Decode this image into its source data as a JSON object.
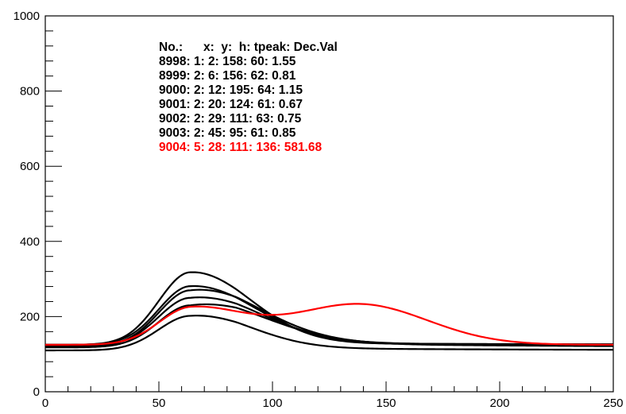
{
  "chart_data": {
    "type": "line",
    "title": "",
    "xlabel": "",
    "ylabel": "",
    "xlim": [
      0,
      250
    ],
    "ylim": [
      0,
      1000
    ],
    "x_ticks": [
      "0",
      "50",
      "100",
      "150",
      "200",
      "250"
    ],
    "y_ticks": [
      "0",
      "200",
      "400",
      "600",
      "800",
      "1000"
    ],
    "grid": false,
    "legend_placement": "top-left",
    "legend": {
      "header": "No.:      x:  y:  h: tpeak: Dec.Val",
      "rows": [
        {
          "text": "8998: 1: 2: 158: 60: 1.55",
          "color": "#000000"
        },
        {
          "text": "8999: 2: 6: 156: 62: 0.81",
          "color": "#000000"
        },
        {
          "text": "9000: 2: 12: 195: 64: 1.15",
          "color": "#000000"
        },
        {
          "text": "9001: 2: 20: 124: 61: 0.67",
          "color": "#000000"
        },
        {
          "text": "9002: 2: 29: 111: 63: 0.75",
          "color": "#000000"
        },
        {
          "text": "9003: 2: 45: 95: 61: 0.85",
          "color": "#000000"
        },
        {
          "text": "9004: 5: 28: 111: 136: 581.68",
          "color": "#ff0000"
        }
      ]
    },
    "series": [
      {
        "color": "#000000",
        "baseline": 125,
        "peak_x": 64,
        "amplitude": 193,
        "rise_width": 14,
        "fall_width": 26,
        "tail": 5
      },
      {
        "color": "#000000",
        "baseline": 125,
        "peak_x": 64,
        "amplitude": 156,
        "rise_width": 14,
        "fall_width": 28,
        "tail": 6
      },
      {
        "color": "#000000",
        "baseline": 120,
        "peak_x": 64,
        "amplitude": 150,
        "rise_width": 14,
        "fall_width": 30,
        "tail": 14
      },
      {
        "color": "#000000",
        "baseline": 122,
        "peak_x": 64,
        "amplitude": 128,
        "rise_width": 14,
        "fall_width": 30,
        "tail": 12
      },
      {
        "color": "#000000",
        "baseline": 118,
        "peak_x": 64,
        "amplitude": 112,
        "rise_width": 14,
        "fall_width": 32,
        "tail": 16
      },
      {
        "color": "#000000",
        "baseline": 110,
        "peak_x": 64,
        "amplitude": 92,
        "rise_width": 14,
        "fall_width": 26,
        "tail": 8
      },
      {
        "color": "#ff0000",
        "baseline": 125,
        "peak_x": 64,
        "amplitude": 96,
        "rise_width": 14,
        "fall_width": 24,
        "tail": 0,
        "second_peak_x": 138,
        "second_amplitude": 108,
        "second_width": 30
      }
    ]
  }
}
